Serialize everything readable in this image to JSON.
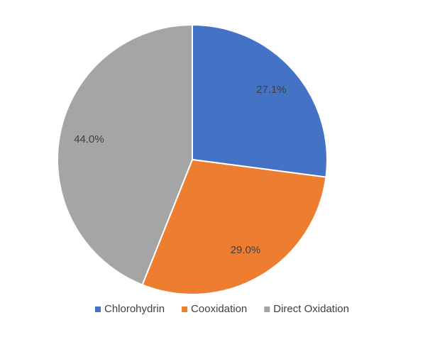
{
  "chart_data": {
    "type": "pie",
    "categories": [
      "Chlorohydrin",
      "Cooxidation",
      "Direct Oxidation"
    ],
    "values": [
      27.1,
      29.0,
      44.0
    ],
    "value_labels": [
      "27.1%",
      "29.0%",
      "44.0%"
    ],
    "colors": [
      "#4472c4",
      "#ed7d31",
      "#a5a5a5"
    ],
    "legend": "bottom"
  }
}
